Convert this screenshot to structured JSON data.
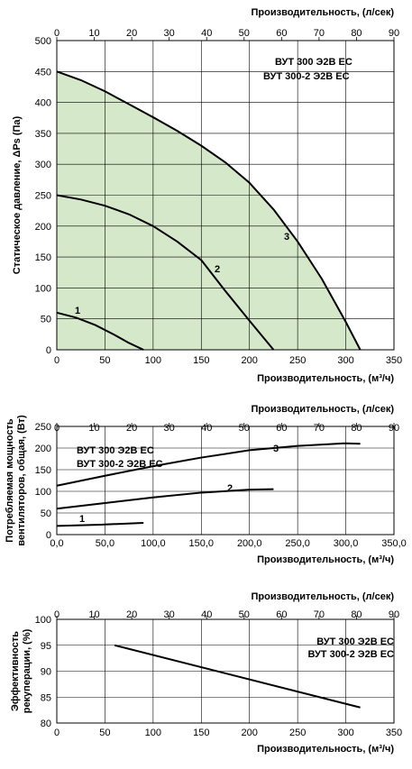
{
  "chart_data": [
    {
      "type": "line",
      "panel": "pressure",
      "top_axis": {
        "label": "Производительность, (л/сек)",
        "lim": [
          0,
          90
        ],
        "ticks": [
          "0",
          "10",
          "20",
          "30",
          "40",
          "50",
          "60",
          "70",
          "80",
          "90"
        ]
      },
      "xlabel": "Производительность, (м³/ч)",
      "xlim": [
        0,
        350
      ],
      "x_ticks": [
        "0",
        "50",
        "100",
        "150",
        "200",
        "250",
        "300",
        "350"
      ],
      "ylabel": "Статическое давление, ΔPs (Па)",
      "ylim": [
        0,
        500
      ],
      "y_ticks": [
        "0",
        "50",
        "100",
        "150",
        "200",
        "250",
        "300",
        "350",
        "400",
        "450",
        "500"
      ],
      "grid": true,
      "models": [
        "ВУТ 300 Э2В ЕС",
        "ВУТ 300-2 Э2В ЕС"
      ],
      "shaded_area_color": "#d5e8c9",
      "series": [
        {
          "name": "1",
          "x": [
            0,
            20,
            40,
            60,
            75,
            90
          ],
          "y": [
            60,
            52,
            40,
            24,
            11,
            0
          ]
        },
        {
          "name": "2",
          "x": [
            0,
            25,
            50,
            75,
            100,
            125,
            150,
            160,
            175,
            200,
            225
          ],
          "y": [
            250,
            243,
            233,
            219,
            200,
            175,
            145,
            125,
            95,
            47,
            0
          ]
        },
        {
          "name": "3",
          "x": [
            0,
            25,
            50,
            75,
            100,
            125,
            150,
            175,
            200,
            225,
            250,
            275,
            300,
            315
          ],
          "y": [
            450,
            436,
            418,
            397,
            376,
            354,
            330,
            303,
            270,
            227,
            175,
            115,
            45,
            0
          ]
        }
      ]
    },
    {
      "type": "line",
      "panel": "power",
      "top_axis": {
        "label": "Производительность, (л/сек)",
        "lim": [
          0,
          90
        ],
        "ticks": [
          "0",
          "10",
          "20",
          "30",
          "40",
          "50",
          "60",
          "70",
          "80",
          "90"
        ]
      },
      "xlabel": "Производительность, (м³/ч)",
      "xlim": [
        0,
        350
      ],
      "x_ticks": [
        "0,0",
        "50,0",
        "100,0",
        "150,0",
        "200,0",
        "250,0",
        "300,0",
        "350,0"
      ],
      "ylabel": "Потребляемая мощность вентиляторов, общая, (Вт)",
      "ylim": [
        0,
        250
      ],
      "y_ticks": [
        "0",
        "50",
        "100",
        "150",
        "200",
        "250"
      ],
      "grid": true,
      "models": [
        "ВУТ 300 Э2В ЕС",
        "ВУТ 300-2 Э2В ЕС"
      ],
      "series": [
        {
          "name": "1",
          "x": [
            0,
            45,
            90
          ],
          "y": [
            20,
            23,
            27
          ]
        },
        {
          "name": "2",
          "x": [
            0,
            50,
            100,
            150,
            200,
            225
          ],
          "y": [
            60,
            73,
            86,
            97,
            104,
            105
          ]
        },
        {
          "name": "3",
          "x": [
            0,
            50,
            100,
            150,
            200,
            250,
            300,
            315
          ],
          "y": [
            113,
            136,
            158,
            178,
            195,
            205,
            211,
            210
          ]
        }
      ]
    },
    {
      "type": "line",
      "panel": "efficiency",
      "top_axis": {
        "label": "Производительность, (л/сек)",
        "lim": [
          0,
          90
        ],
        "ticks": [
          "0",
          "10",
          "20",
          "30",
          "40",
          "50",
          "60",
          "70",
          "80",
          "90"
        ]
      },
      "xlabel": "Производительность, (м³/ч)",
      "xlim": [
        0,
        350
      ],
      "x_ticks": [
        "0",
        "50",
        "100",
        "150",
        "200",
        "250",
        "300",
        "350"
      ],
      "ylabel": "Эффективность рекуперации, (%)",
      "ylim": [
        80,
        100
      ],
      "y_ticks": [
        "80",
        "85",
        "90",
        "95",
        "100"
      ],
      "grid": true,
      "models": [
        "ВУТ 300 Э2В ЕС",
        "ВУТ 300-2 Э2В ЕС"
      ],
      "series": [
        {
          "x": [
            60,
            315
          ],
          "y": [
            95,
            83
          ]
        }
      ]
    }
  ],
  "colors": {
    "fill": "#d5e8c9",
    "axis": "#000000",
    "grid": "#000000"
  }
}
